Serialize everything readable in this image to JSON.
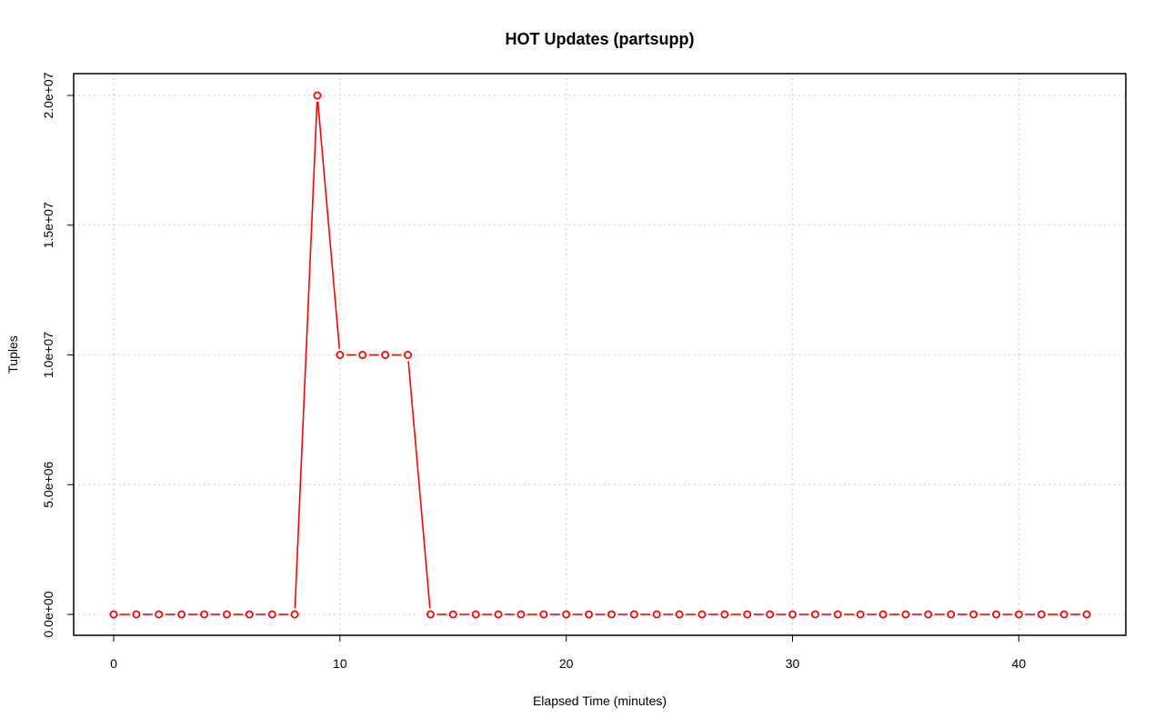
{
  "chart_data": {
    "type": "line",
    "title": "HOT Updates (partsupp)",
    "xlabel": "Elapsed Time (minutes)",
    "ylabel": "Tuples",
    "xlim": [
      0,
      43
    ],
    "ylim": [
      0,
      20000000
    ],
    "x_ticks": [
      0,
      10,
      20,
      30,
      40
    ],
    "x_tick_labels": [
      "0",
      "10",
      "20",
      "30",
      "40"
    ],
    "y_ticks": [
      0,
      5000000,
      10000000,
      15000000,
      20000000
    ],
    "y_tick_labels": [
      "0.0e+00",
      "5.0e+06",
      "1.0e+07",
      "1.5e+07",
      "2.0e+07"
    ],
    "grid": true,
    "series": [
      {
        "color": "#ff0000",
        "marker": "open-circle",
        "x": [
          0,
          1,
          2,
          3,
          4,
          5,
          6,
          7,
          8,
          9,
          10,
          11,
          12,
          13,
          14,
          15,
          16,
          17,
          18,
          19,
          20,
          21,
          22,
          23,
          24,
          25,
          26,
          27,
          28,
          29,
          30,
          31,
          32,
          33,
          34,
          35,
          36,
          37,
          38,
          39,
          40,
          41,
          42,
          43
        ],
        "values": [
          0,
          0,
          0,
          0,
          0,
          0,
          0,
          0,
          0,
          20000000,
          10000000,
          10000000,
          10000000,
          10000000,
          0,
          0,
          0,
          0,
          0,
          0,
          0,
          0,
          0,
          0,
          0,
          0,
          0,
          0,
          0,
          0,
          0,
          0,
          0,
          0,
          0,
          0,
          0,
          0,
          0,
          0,
          0,
          0,
          0,
          0
        ]
      }
    ]
  }
}
